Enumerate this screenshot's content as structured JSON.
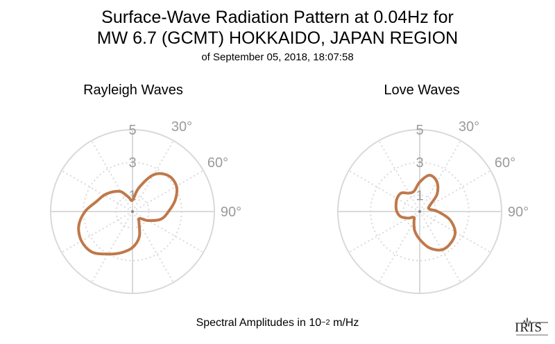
{
  "title_line1": "Surface-Wave Radiation Pattern at 0.04Hz for",
  "title_line2": "MW 6.7 (GCMT) HOKKAIDO, JAPAN REGION",
  "subtitle": "of September 05, 2018, 18:07:58",
  "footer": {
    "prefix": "Spectral Amplitudes in 10",
    "exponent": "−2",
    "suffix": " m/Hz"
  },
  "logo_text": "IRIS",
  "colors": {
    "pattern": "#c0784a",
    "grid": "#d9d9d9",
    "tick_text": "#9a9a9a"
  },
  "chart_data": [
    {
      "type": "polar",
      "title": "Rayleigh Waves",
      "radial_ticks": [
        "1",
        "3",
        "5"
      ],
      "radial_max": 5,
      "angle_labels": [
        "30°",
        "60°",
        "90°"
      ],
      "pattern": [
        {
          "azimuth": 0,
          "amplitude": 0.7
        },
        {
          "azimuth": 15,
          "amplitude": 1.5
        },
        {
          "azimuth": 30,
          "amplitude": 2.6
        },
        {
          "azimuth": 45,
          "amplitude": 3.1
        },
        {
          "azimuth": 60,
          "amplitude": 3.1
        },
        {
          "azimuth": 75,
          "amplitude": 2.7
        },
        {
          "azimuth": 90,
          "amplitude": 2.2
        },
        {
          "azimuth": 105,
          "amplitude": 1.8
        },
        {
          "azimuth": 120,
          "amplitude": 1.1
        },
        {
          "azimuth": 135,
          "amplitude": 0.6
        },
        {
          "azimuth": 150,
          "amplitude": 0.8
        },
        {
          "azimuth": 165,
          "amplitude": 1.6
        },
        {
          "azimuth": 180,
          "amplitude": 2.2
        },
        {
          "azimuth": 195,
          "amplitude": 2.6
        },
        {
          "azimuth": 210,
          "amplitude": 3.0
        },
        {
          "azimuth": 225,
          "amplitude": 3.5
        },
        {
          "azimuth": 240,
          "amplitude": 3.6
        },
        {
          "azimuth": 255,
          "amplitude": 3.4
        },
        {
          "azimuth": 270,
          "amplitude": 2.9
        },
        {
          "azimuth": 285,
          "amplitude": 2.3
        },
        {
          "azimuth": 300,
          "amplitude": 2.0
        },
        {
          "azimuth": 315,
          "amplitude": 1.7
        },
        {
          "azimuth": 330,
          "amplitude": 1.4
        },
        {
          "azimuth": 345,
          "amplitude": 0.9
        }
      ]
    },
    {
      "type": "polar",
      "title": "Love Waves",
      "radial_ticks": [
        "1",
        "3",
        "5"
      ],
      "radial_max": 5,
      "angle_labels": [
        "30°",
        "60°",
        "90°"
      ],
      "pattern": [
        {
          "azimuth": 0,
          "amplitude": 1.8
        },
        {
          "azimuth": 15,
          "amplitude": 2.3
        },
        {
          "azimuth": 30,
          "amplitude": 2.1
        },
        {
          "azimuth": 45,
          "amplitude": 1.5
        },
        {
          "azimuth": 60,
          "amplitude": 0.7
        },
        {
          "azimuth": 75,
          "amplitude": 0.6
        },
        {
          "azimuth": 90,
          "amplitude": 1.1
        },
        {
          "azimuth": 105,
          "amplitude": 1.9
        },
        {
          "azimuth": 120,
          "amplitude": 2.5
        },
        {
          "azimuth": 135,
          "amplitude": 2.7
        },
        {
          "azimuth": 150,
          "amplitude": 2.7
        },
        {
          "azimuth": 165,
          "amplitude": 2.3
        },
        {
          "azimuth": 180,
          "amplitude": 1.7
        },
        {
          "azimuth": 195,
          "amplitude": 1.2
        },
        {
          "azimuth": 210,
          "amplitude": 0.7
        },
        {
          "azimuth": 225,
          "amplitude": 0.5
        },
        {
          "azimuth": 240,
          "amplitude": 0.8
        },
        {
          "azimuth": 255,
          "amplitude": 1.2
        },
        {
          "azimuth": 270,
          "amplitude": 1.4
        },
        {
          "azimuth": 285,
          "amplitude": 1.5
        },
        {
          "azimuth": 300,
          "amplitude": 1.6
        },
        {
          "azimuth": 315,
          "amplitude": 1.6
        },
        {
          "azimuth": 330,
          "amplitude": 1.3
        },
        {
          "azimuth": 345,
          "amplitude": 1.3
        }
      ]
    }
  ]
}
